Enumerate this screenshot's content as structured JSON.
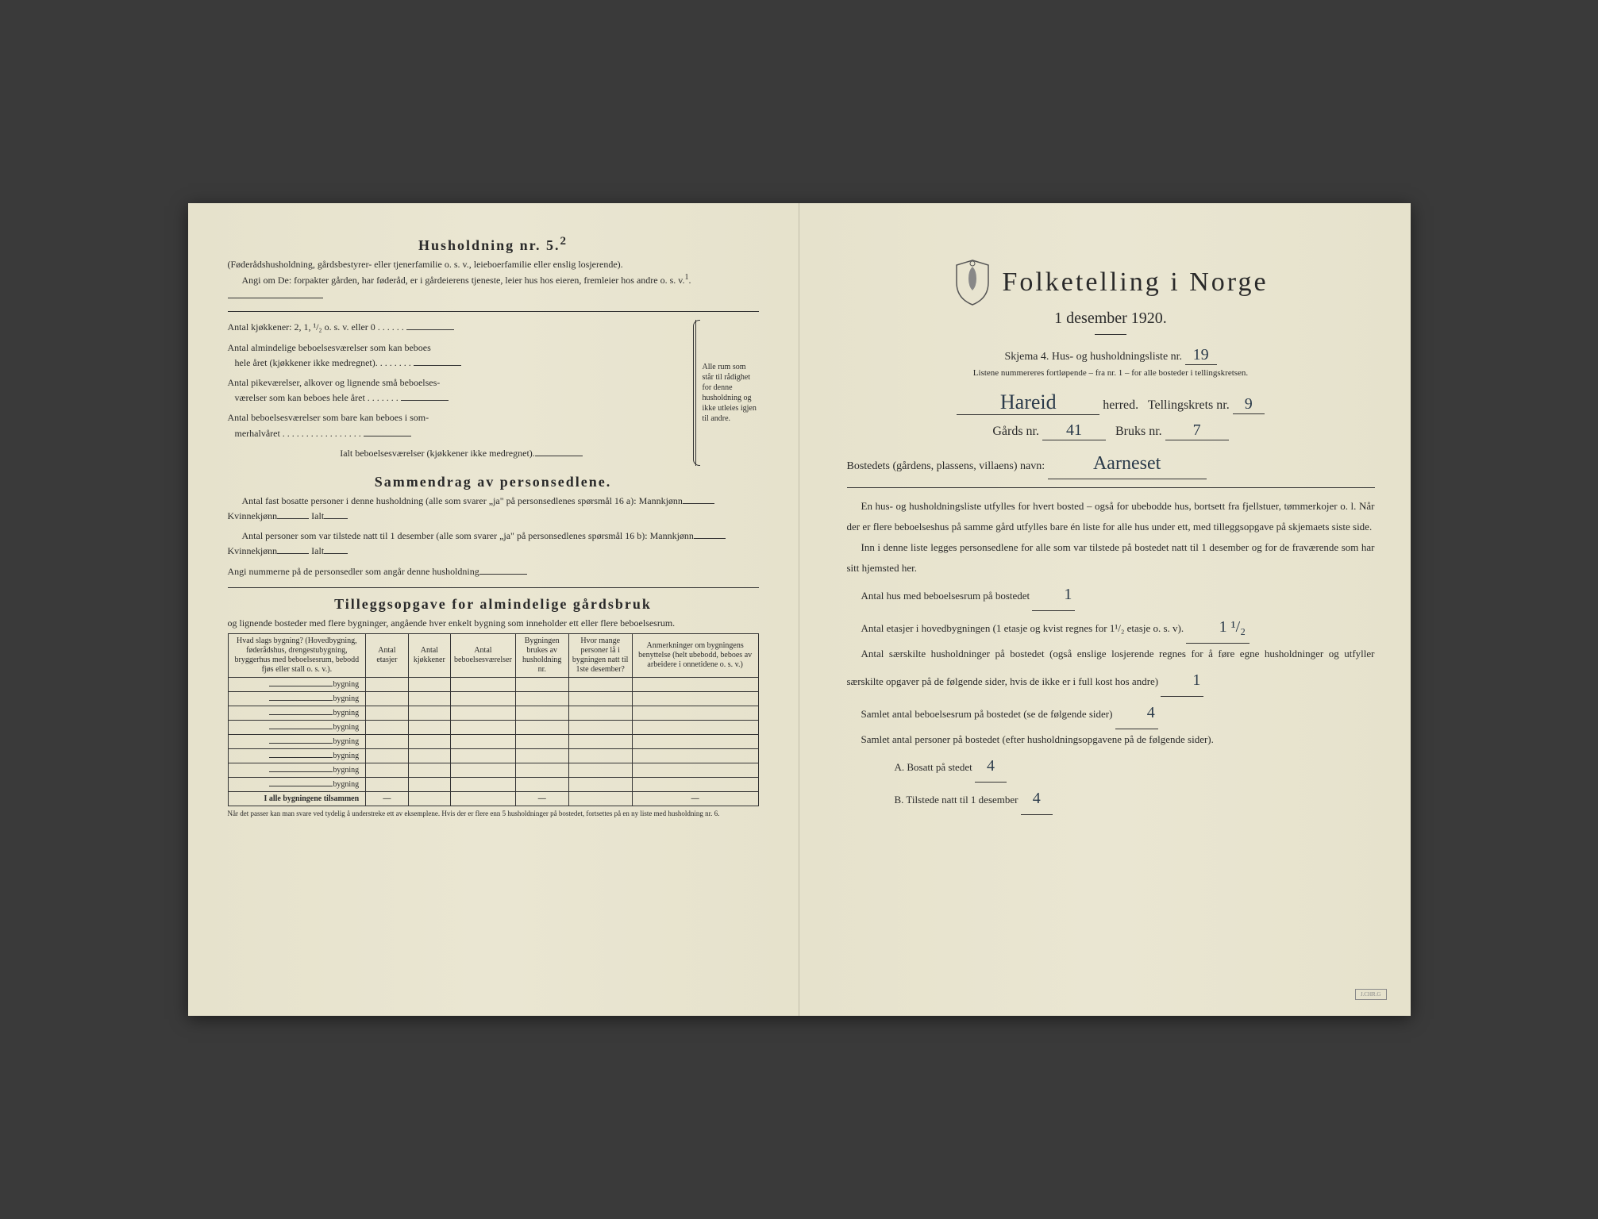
{
  "left": {
    "husholdning_title": "Husholdning nr. 5.",
    "husholdning_sup": "2",
    "husholdning_note": "(Føderådshusholdning, gårdsbestyrer- eller tjenerfamilie o. s. v., leieboerfamilie eller enslig losjerende).",
    "angi_text": "Angi om De:   forpakter gården, har føderåd, er i gårdeierens tjeneste, leier hus hos eieren, fremleier hos andre o. s. v.",
    "angi_sup": "1",
    "kjokken_line": "Antal kjøkkener: 2, 1, ¹/₂ o. s. v. eller 0 . . . . . .",
    "almind_line1": "Antal almindelige beboelsesværelser som kan beboes",
    "almind_line2": "hele året (kjøkkener ikke medregnet). . . . . . . .",
    "pike_line1": "Antal pikeværelser, alkover og lignende små beboelses-",
    "pike_line2": "værelser som kan beboes hele året . . . . . . .",
    "sommer_line1": "Antal beboelsesværelser som bare kan beboes i som-",
    "sommer_line2": "merhalvåret . . . . . . . . . . . . . . . . .",
    "ialt_line": "Ialt beboelsesværelser (kjøkkener ikke medregnet).",
    "brace_text": "Alle rum som står til rådighet for denne husholdning og ikke utleies igjen til andre.",
    "sammendrag_title": "Sammendrag av personsedlene.",
    "sammendrag_p1": "Antal fast bosatte personer i denne husholdning (alle som svarer „ja\" på personsedlenes spørsmål 16 a): Mannkjønn",
    "kvinnekjonn": "Kvinnekjønn",
    "ialt": "Ialt",
    "sammendrag_p2": "Antal personer som var tilstede natt til 1 desember (alle som svarer „ja\" på personsedlenes spørsmål 16 b): Mannkjønn",
    "angi_nummer": "Angi nummerne på de personsedler som angår denne husholdning",
    "tillegg_title": "Tilleggsopgave for almindelige gårdsbruk",
    "tillegg_sub": "og lignende bosteder med flere bygninger, angående hver enkelt bygning som inneholder ett eller flere beboelsesrum.",
    "table": {
      "headers": [
        "Hvad slags bygning?\n(Hovedbygning, føderådshus, drengestubygning, bryggerhus med beboelsesrum, bebodd fjøs eller stall o. s. v.).",
        "Antal etasjer",
        "Antal kjøkkener",
        "Antal beboelsesværelser",
        "Bygningen brukes av husholdning nr.",
        "Hvor mange personer lå i bygningen natt til 1ste desember?",
        "Anmerkninger om bygningens benyttelse (helt ubebodd, beboes av arbeidere i onnetidene o. s. v.)"
      ],
      "row_label": "bygning",
      "total_label": "I alle bygningene tilsammen"
    },
    "footnote": "Når det passer kan man svare ved tydelig å understreke ett av eksemplene.\nHvis der er flere enn 5 husholdninger på bostedet, fortsettes på en ny liste med husholdning nr. 6."
  },
  "right": {
    "main_title": "Folketelling i Norge",
    "date": "1 desember 1920.",
    "skjema": "Skjema 4.   Hus- og husholdningsliste nr.",
    "liste_nr": "19",
    "listene_text": "Listene nummereres fortløpende – fra nr. 1 – for alle bosteder i tellingskretsen.",
    "herred_value": "Hareid",
    "herred_label": "herred.",
    "tellingskrets_label": "Tellingskrets nr.",
    "tellingskrets_value": "9",
    "gards_label": "Gårds nr.",
    "gards_value": "41",
    "bruks_label": "Bruks nr.",
    "bruks_value": "7",
    "bosted_label": "Bostedets (gårdens, plassens, villaens) navn:",
    "bosted_value": "Aarneset",
    "body_p1": "En hus- og husholdningsliste utfylles for hvert bosted – også for ubebodde hus, bortsett fra fjellstuer, tømmerkojer o. l.  Når der er flere beboelseshus på samme gård utfylles bare én liste for alle hus under ett, med tilleggsopgave på skjemaets siste side.",
    "body_p2": "Inn i denne liste legges personsedlene for alle som var tilstede på bostedet natt til 1 desember og for de fraværende som har sitt hjemsted her.",
    "antal_hus_label": "Antal hus med beboelsesrum på bostedet",
    "antal_hus_value": "1",
    "antal_etasjer_label": "Antal etasjer i hovedbygningen (1 etasje og kvist regnes for 1¹/₂ etasje o. s. v).",
    "antal_etasjer_value": "1 ¹/₂",
    "antal_hushold_label": "Antal særskilte husholdninger på bostedet (også enslige losjerende regnes for å føre egne husholdninger og utfyller særskilte opgaver på de følgende sider, hvis de ikke er i full kost hos andre)",
    "antal_hushold_value": "1",
    "samlet_beboelse_label": "Samlet antal beboelsesrum på bostedet (se de følgende sider)",
    "samlet_beboelse_value": "4",
    "samlet_personer_label": "Samlet antal personer på bostedet (efter husholdningsopgavene på de følgende sider).",
    "bosatt_label": "A.  Bosatt på stedet",
    "bosatt_value": "4",
    "tilstede_label": "B.  Tilstede natt til 1 desember",
    "tilstede_value": "4"
  },
  "colors": {
    "paper": "#e8e4d0",
    "ink": "#2a2a2a",
    "handwriting": "#2a3a4a"
  }
}
